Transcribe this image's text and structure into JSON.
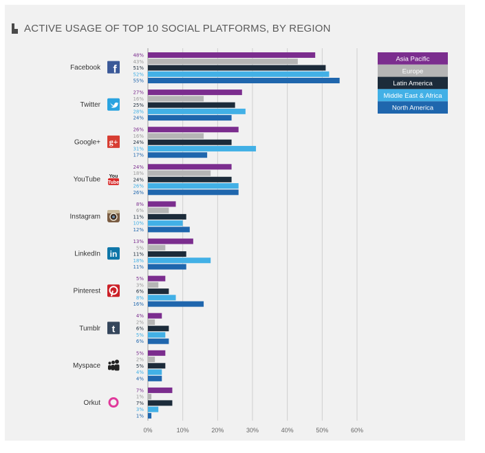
{
  "chart_data": {
    "type": "bar",
    "orientation": "horizontal",
    "title": "ACTIVE USAGE OF TOP 10 SOCIAL PLATFORMS, BY REGION",
    "xlabel": "",
    "ylabel": "",
    "xlim": [
      0,
      60
    ],
    "x_ticks": [
      "0%",
      "10%",
      "20%",
      "30%",
      "40%",
      "50%",
      "60%"
    ],
    "grid": true,
    "legend_position": "top-right",
    "categories": [
      "Facebook",
      "Twitter",
      "Google+",
      "YouTube",
      "Instagram",
      "LinkedIn",
      "Pinterest",
      "Tumblr",
      "Myspace",
      "Orkut"
    ],
    "icons": [
      "facebook-icon",
      "twitter-icon",
      "google-plus-icon",
      "youtube-icon",
      "instagram-icon",
      "linkedin-icon",
      "pinterest-icon",
      "tumblr-icon",
      "myspace-icon",
      "orkut-icon"
    ],
    "series": [
      {
        "name": "Asia Pacific",
        "color": "#7b2d8e",
        "values": [
          48,
          27,
          26,
          24,
          8,
          13,
          5,
          4,
          5,
          7
        ],
        "labels": [
          "48%",
          "27%",
          "26%",
          "24%",
          "8%",
          "13%",
          "5%",
          "4%",
          "5%",
          "7%"
        ]
      },
      {
        "name": "Europe",
        "color": "#b5b5b5",
        "values": [
          43,
          16,
          16,
          18,
          6,
          5,
          3,
          2,
          2,
          1
        ],
        "labels": [
          "43%",
          "16%",
          "16%",
          "18%",
          "6%",
          "5%",
          "3%",
          "2%",
          "2%",
          "1%"
        ]
      },
      {
        "name": "Latin America",
        "color": "#1c2b3a",
        "values": [
          51,
          25,
          24,
          24,
          11,
          11,
          6,
          6,
          5,
          7
        ],
        "labels": [
          "51%",
          "25%",
          "24%",
          "24%",
          "11%",
          "11%",
          "6%",
          "6%",
          "5%",
          "7%"
        ]
      },
      {
        "name": "Middle East & Africa",
        "color": "#42b0e6",
        "values": [
          52,
          28,
          31,
          26,
          10,
          18,
          8,
          5,
          4,
          3
        ],
        "labels": [
          "52%",
          "28%",
          "31%",
          "26%",
          "10%",
          "18%",
          "8%",
          "5%",
          "4%",
          "3%"
        ]
      },
      {
        "name": "North America",
        "color": "#1f66ad",
        "values": [
          55,
          24,
          17,
          26,
          12,
          11,
          16,
          6,
          4,
          1
        ],
        "labels": [
          "55%",
          "24%",
          "17%",
          "26%",
          "12%",
          "11%",
          "16%",
          "6%",
          "4%",
          "1%"
        ]
      }
    ]
  }
}
